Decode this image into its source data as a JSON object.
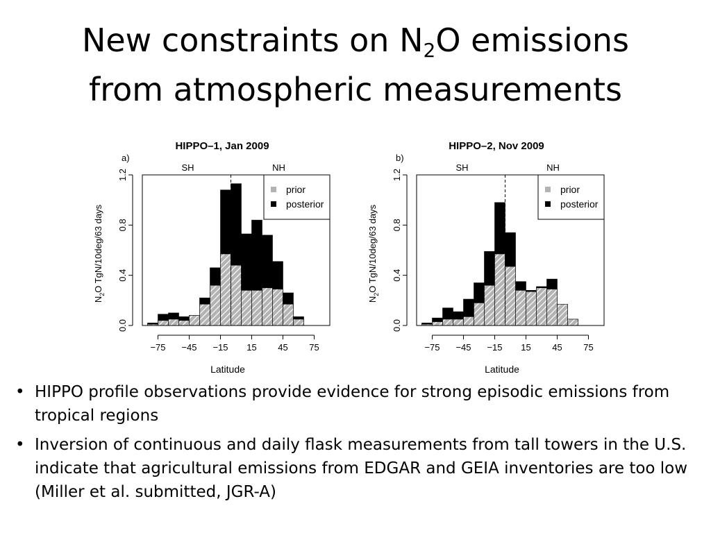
{
  "slide": {
    "title_main": "New constraints on N",
    "title_sub": "2",
    "title_rest": "O emissions",
    "title_line2": "from atmospheric measurements",
    "bullet_glyph": "•",
    "bullets": [
      "HIPPO profile observations provide evidence for strong episodic emissions from tropical regions",
      "Inversion of continuous and daily flask measurements from tall towers in the U.S. indicate that agricultural emissions from EDGAR and GEIA inventories are too low (Miller et al. submitted, JGR-A)"
    ]
  },
  "colors": {
    "prior": "#b3b3b3",
    "posterior": "#000000",
    "prior_hatch": "#ffffff"
  },
  "chart_data": [
    {
      "type": "bar",
      "panel_label": "a)",
      "title": "HIPPO–1, Jan 2009",
      "hemisphere_labels": [
        "SH",
        "NH"
      ],
      "xlabel": "Latitude",
      "ylabel_main": "N",
      "ylabel_sub": "2",
      "ylabel_rest": "O TgN/10deg/63 days",
      "xlim": [
        -90,
        90
      ],
      "ylim": [
        0,
        1.2
      ],
      "xticks": [
        -75,
        -45,
        -15,
        15,
        45,
        75
      ],
      "xtick_labels": [
        "−75",
        "−45",
        "−15",
        "15",
        "45",
        "75"
      ],
      "yticks": [
        0.0,
        0.4,
        0.8,
        1.2
      ],
      "ytick_labels": [
        "0.0",
        "0.4",
        "0.8",
        "1.2"
      ],
      "divider_x": -5,
      "bin_width": 10,
      "x": [
        -80,
        -70,
        -60,
        -50,
        -40,
        -30,
        -20,
        -10,
        0,
        10,
        20,
        30,
        40,
        50,
        60,
        70
      ],
      "series": [
        {
          "name": "prior",
          "values": [
            0.01,
            0.04,
            0.05,
            0.04,
            0.08,
            0.17,
            0.32,
            0.57,
            0.48,
            0.28,
            0.28,
            0.3,
            0.29,
            0.17,
            0.05,
            0.0
          ]
        },
        {
          "name": "posterior",
          "values": [
            0.02,
            0.09,
            0.1,
            0.07,
            0.08,
            0.22,
            0.46,
            1.08,
            1.13,
            0.73,
            0.84,
            0.72,
            0.51,
            0.26,
            0.07,
            0.0
          ]
        }
      ],
      "legend": {
        "position": "top-right",
        "entries": [
          "prior",
          "posterior"
        ]
      },
      "grid": false
    },
    {
      "type": "bar",
      "panel_label": "b)",
      "title": "HIPPO–2, Nov 2009",
      "hemisphere_labels": [
        "SH",
        "NH"
      ],
      "xlabel": "Latitude",
      "ylabel_main": "N",
      "ylabel_sub": "2",
      "ylabel_rest": "O TgN/10deg/63 days",
      "xlim": [
        -90,
        90
      ],
      "ylim": [
        0,
        1.2
      ],
      "xticks": [
        -75,
        -45,
        -15,
        15,
        45,
        75
      ],
      "xtick_labels": [
        "−75",
        "−45",
        "−15",
        "15",
        "45",
        "75"
      ],
      "yticks": [
        0.0,
        0.4,
        0.8,
        1.2
      ],
      "ytick_labels": [
        "0.0",
        "0.4",
        "0.8",
        "1.2"
      ],
      "divider_x": -5,
      "bin_width": 10,
      "x": [
        -80,
        -70,
        -60,
        -50,
        -40,
        -30,
        -20,
        -10,
        0,
        10,
        20,
        30,
        40,
        50,
        60,
        70
      ],
      "series": [
        {
          "name": "prior",
          "values": [
            0.01,
            0.03,
            0.05,
            0.05,
            0.07,
            0.18,
            0.32,
            0.57,
            0.47,
            0.28,
            0.27,
            0.3,
            0.29,
            0.17,
            0.05,
            0.0
          ]
        },
        {
          "name": "posterior",
          "values": [
            0.02,
            0.06,
            0.14,
            0.11,
            0.21,
            0.34,
            0.59,
            0.98,
            0.74,
            0.35,
            0.28,
            0.31,
            0.37,
            0.16,
            0.05,
            0.0
          ]
        }
      ],
      "legend": {
        "position": "top-right",
        "entries": [
          "prior",
          "posterior"
        ]
      },
      "grid": false
    }
  ]
}
